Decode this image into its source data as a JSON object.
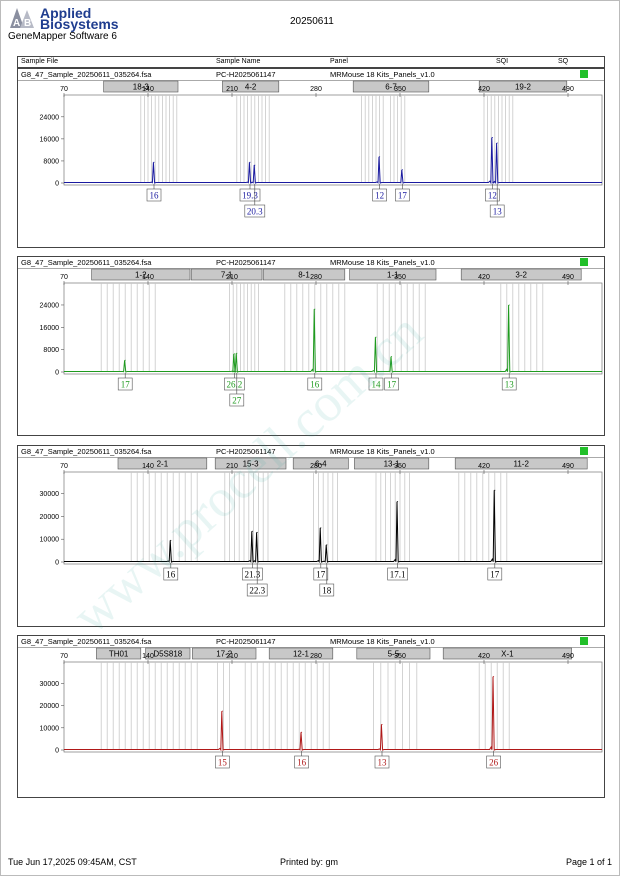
{
  "header": {
    "brand_line1": "Applied",
    "brand_line2": "Biosystems",
    "software": "GeneMapper Software 6",
    "report_date": "20250611"
  },
  "columns": [
    "Sample File",
    "Sample Name",
    "Panel",
    "SQI",
    "SQ"
  ],
  "footer": {
    "printed_at": "Tue Jun 17,2025 09:45AM, CST",
    "printed_by": "Printed by: gm",
    "page": "Page 1 of 1"
  },
  "watermark": "www.procell.com.cn",
  "colors": {
    "blue": "#1a1aa0",
    "green": "#1e9a1e",
    "black": "#000000",
    "red": "#b01818",
    "sq_ok": "#22c02a"
  },
  "chart_data": [
    {
      "type": "line",
      "sample_file": "G8_47_Sample_20250611_035264.fsa",
      "sample_name": "PC-H2025061147",
      "panel": "MRMouse 18 Kits_Panels_v1.0",
      "dye_color": "#1a1aa0",
      "x_ticks": [
        70,
        140,
        210,
        280,
        350,
        420,
        490
      ],
      "xlim": [
        70,
        520
      ],
      "y_ticks": [
        0,
        8000,
        16000,
        24000
      ],
      "ylim": [
        0,
        29000
      ],
      "markers": [
        {
          "label": "18-3",
          "start": 103,
          "end": 165
        },
        {
          "label": "4-2",
          "start": 202,
          "end": 249
        },
        {
          "label": "6-7",
          "start": 311,
          "end": 374
        },
        {
          "label": "19-2",
          "start": 416,
          "end": 489
        }
      ],
      "bins": [
        134,
        137,
        140,
        143,
        146,
        149,
        152,
        155,
        158,
        161,
        164,
        214,
        217,
        220,
        223,
        226,
        229,
        232,
        235,
        238,
        241,
        318,
        321,
        324,
        327,
        330,
        333,
        336,
        342,
        345,
        348,
        351,
        354,
        420,
        423,
        426,
        429,
        432,
        435,
        438,
        441,
        444
      ],
      "peaks": [
        {
          "x": 145,
          "h": 7500
        },
        {
          "x": 225,
          "h": 7500
        },
        {
          "x": 229,
          "h": 6500
        },
        {
          "x": 333,
          "h": 9500
        },
        {
          "x": 352,
          "h": 4800
        },
        {
          "x": 427,
          "h": 16500
        },
        {
          "x": 431,
          "h": 14500
        }
      ],
      "alleles": [
        {
          "label": "16",
          "x": 145,
          "row": 0
        },
        {
          "label": "19.3",
          "x": 225,
          "row": 0
        },
        {
          "label": "20.3",
          "x": 229,
          "row": 1
        },
        {
          "label": "12",
          "x": 333,
          "row": 0
        },
        {
          "label": "17",
          "x": 352,
          "row": 0
        },
        {
          "label": "12",
          "x": 427,
          "row": 0
        },
        {
          "label": "13",
          "x": 431,
          "row": 1
        }
      ]
    },
    {
      "type": "line",
      "sample_file": "G8_47_Sample_20250611_035264.fsa",
      "sample_name": "PC-H2025061147",
      "panel": "MRMouse 18 Kits_Panels_v1.0",
      "dye_color": "#1e9a1e",
      "x_ticks": [
        70,
        140,
        210,
        280,
        350,
        420,
        490
      ],
      "xlim": [
        70,
        520
      ],
      "y_ticks": [
        0,
        8000,
        16000,
        24000
      ],
      "ylim": [
        0,
        29000
      ],
      "markers": [
        {
          "label": "1-2",
          "start": 93,
          "end": 175
        },
        {
          "label": "7-1",
          "start": 176,
          "end": 235
        },
        {
          "label": "8-1",
          "start": 236,
          "end": 304
        },
        {
          "label": "1-1",
          "start": 308,
          "end": 380
        },
        {
          "label": "3-2",
          "start": 401,
          "end": 501
        }
      ],
      "bins": [
        101,
        106,
        111,
        116,
        121,
        126,
        131,
        136,
        141,
        146,
        208,
        211,
        214,
        217,
        220,
        223,
        226,
        229,
        232,
        254,
        259,
        264,
        269,
        274,
        279,
        284,
        289,
        294,
        299,
        304,
        331,
        336,
        341,
        346,
        351,
        356,
        361,
        366,
        371,
        434,
        439,
        444,
        449,
        454,
        459,
        464,
        469
      ],
      "peaks": [
        {
          "x": 121,
          "h": 4200
        },
        {
          "x": 212,
          "h": 6500
        },
        {
          "x": 214,
          "h": 6700
        },
        {
          "x": 279,
          "h": 22500
        },
        {
          "x": 330,
          "h": 12500
        },
        {
          "x": 343,
          "h": 5500
        },
        {
          "x": 441,
          "h": 24000
        }
      ],
      "alleles": [
        {
          "label": "17",
          "x": 121,
          "row": 0
        },
        {
          "label": "26.2",
          "x": 212,
          "row": 0
        },
        {
          "label": "27",
          "x": 214,
          "row": 1
        },
        {
          "label": "16",
          "x": 279,
          "row": 0
        },
        {
          "label": "14",
          "x": 330,
          "row": 0
        },
        {
          "label": "17",
          "x": 343,
          "row": 0
        },
        {
          "label": "13",
          "x": 441,
          "row": 0
        }
      ]
    },
    {
      "type": "line",
      "sample_file": "G8_47_Sample_20250611_035264.fsa",
      "sample_name": "PC-H2025061147",
      "panel": "MRMouse 18 Kits_Panels_v1.0",
      "dye_color": "#000000",
      "x_ticks": [
        70,
        140,
        210,
        280,
        350,
        420,
        490
      ],
      "xlim": [
        70,
        520
      ],
      "y_ticks": [
        0,
        10000,
        20000,
        30000
      ],
      "ylim": [
        0,
        36000
      ],
      "markers": [
        {
          "label": "2-1",
          "start": 115,
          "end": 189
        },
        {
          "label": "15-3",
          "start": 196,
          "end": 255
        },
        {
          "label": "6-4",
          "start": 261,
          "end": 307
        },
        {
          "label": "13-1",
          "start": 312,
          "end": 374
        },
        {
          "label": "11-2",
          "start": 396,
          "end": 506
        }
      ],
      "bins": [
        126,
        131,
        136,
        141,
        146,
        151,
        156,
        161,
        166,
        171,
        176,
        181,
        204,
        208,
        212,
        216,
        220,
        224,
        228,
        232,
        236,
        240,
        278,
        282,
        286,
        290,
        294,
        298,
        330,
        334,
        338,
        342,
        346,
        350,
        354,
        358,
        399,
        404,
        409,
        414,
        419,
        424,
        429,
        434,
        439
      ],
      "peaks": [
        {
          "x": 159,
          "h": 9500
        },
        {
          "x": 227,
          "h": 13500
        },
        {
          "x": 231,
          "h": 13000
        },
        {
          "x": 284,
          "h": 15000
        },
        {
          "x": 289,
          "h": 7500
        },
        {
          "x": 348,
          "h": 26500
        },
        {
          "x": 429,
          "h": 31500
        }
      ],
      "alleles": [
        {
          "label": "16",
          "x": 159,
          "row": 0
        },
        {
          "label": "21.3",
          "x": 227,
          "row": 0
        },
        {
          "label": "22.3",
          "x": 231,
          "row": 1
        },
        {
          "label": "17",
          "x": 284,
          "row": 0
        },
        {
          "label": "18",
          "x": 289,
          "row": 1
        },
        {
          "label": "17.1",
          "x": 348,
          "row": 0
        },
        {
          "label": "17",
          "x": 429,
          "row": 0
        }
      ]
    },
    {
      "type": "line",
      "sample_file": "G8_47_Sample_20250611_035264.fsa",
      "sample_name": "PC-H2025061147",
      "panel": "MRMouse 18 Kits_Panels_v1.0",
      "dye_color": "#b01818",
      "x_ticks": [
        70,
        140,
        210,
        280,
        350,
        420,
        490
      ],
      "xlim": [
        70,
        520
      ],
      "y_ticks": [
        0,
        10000,
        20000,
        30000
      ],
      "ylim": [
        0,
        36000
      ],
      "markers": [
        {
          "label": "TH01",
          "start": 97,
          "end": 134
        },
        {
          "label": "D5S818",
          "start": 138,
          "end": 175
        },
        {
          "label": "17-2",
          "start": 177,
          "end": 230
        },
        {
          "label": "12-1",
          "start": 241,
          "end": 294
        },
        {
          "label": "5-5",
          "start": 314,
          "end": 375
        },
        {
          "label": "X-1",
          "start": 386,
          "end": 493
        }
      ],
      "bins": [
        101,
        106,
        111,
        116,
        121,
        126,
        131,
        136,
        141,
        146,
        151,
        156,
        161,
        166,
        171,
        176,
        181,
        198,
        203,
        208,
        221,
        226,
        231,
        236,
        241,
        246,
        251,
        256,
        261,
        266,
        271,
        276,
        281,
        286,
        291,
        328,
        334,
        340,
        346,
        352,
        358,
        364,
        416,
        421,
        426,
        431,
        436,
        441
      ],
      "peaks": [
        {
          "x": 202,
          "h": 17500
        },
        {
          "x": 268,
          "h": 8000
        },
        {
          "x": 335,
          "h": 11500
        },
        {
          "x": 428,
          "h": 33000
        }
      ],
      "alleles": [
        {
          "label": "15",
          "x": 202,
          "row": 0
        },
        {
          "label": "16",
          "x": 268,
          "row": 0
        },
        {
          "label": "13",
          "x": 335,
          "row": 0
        },
        {
          "label": "26",
          "x": 428,
          "row": 0
        }
      ]
    }
  ]
}
